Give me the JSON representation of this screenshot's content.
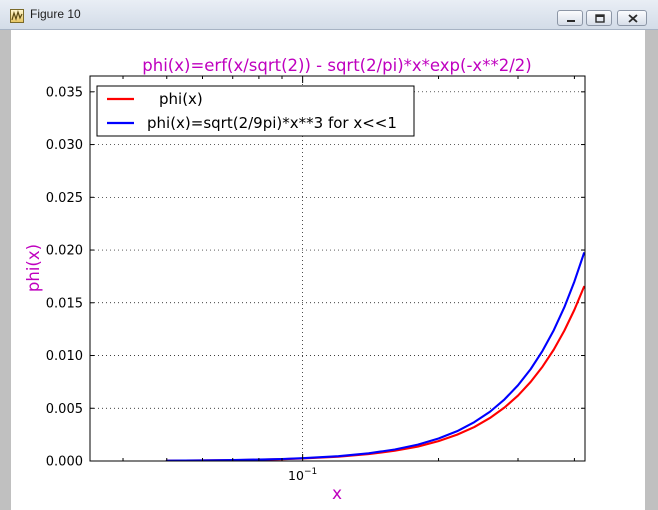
{
  "window": {
    "title": "Figure 10"
  },
  "icons": {
    "app": "figure-app-icon",
    "minimize": "minimize-icon",
    "maximize": "maximize-icon",
    "close": "close-icon"
  },
  "colors": {
    "title": "#bf00bf",
    "series_phi": "#ff0000",
    "series_approx": "#0000ff"
  },
  "chart_data": {
    "type": "line",
    "title": "phi(x)=erf(x/sqrt(2)) - sqrt(2/pi)*x*exp(-x**2/2)",
    "xlabel": "x",
    "ylabel": "phi(x)",
    "xscale": "log",
    "xlim": [
      0.0338,
      0.4222
    ],
    "ylim": [
      0,
      0.0365
    ],
    "grid": true,
    "legend_position": "upper-left",
    "x_ticks": [
      {
        "value": 0.1,
        "label": "10^-1"
      }
    ],
    "y_ticks": [
      {
        "value": 0.0,
        "label": "0.000"
      },
      {
        "value": 0.005,
        "label": "0.005"
      },
      {
        "value": 0.01,
        "label": "0.010"
      },
      {
        "value": 0.015,
        "label": "0.015"
      },
      {
        "value": 0.02,
        "label": "0.020"
      },
      {
        "value": 0.025,
        "label": "0.025"
      },
      {
        "value": 0.03,
        "label": "0.030"
      },
      {
        "value": 0.035,
        "label": "0.035"
      }
    ],
    "series": [
      {
        "name": "phi(x)",
        "color": "#ff0000",
        "x": [
          0.05,
          0.06,
          0.07,
          0.08,
          0.09,
          0.1,
          0.12,
          0.14,
          0.16,
          0.18,
          0.2,
          0.22,
          0.24,
          0.26,
          0.28,
          0.3,
          0.32,
          0.34,
          0.36,
          0.38,
          0.4,
          0.42
        ],
        "y": [
          3e-05,
          5e-05,
          8e-05,
          0.00012,
          0.00017,
          0.00024,
          0.00041,
          0.00065,
          0.00097,
          0.00137,
          0.00188,
          0.0025,
          0.00322,
          0.00408,
          0.00507,
          0.0062,
          0.0075,
          0.00895,
          0.01056,
          0.01236,
          0.01434,
          0.01651
        ]
      },
      {
        "name": "phi(x)=sqrt(2/9pi)*x**3 for x<<1",
        "color": "#0000ff",
        "x": [
          0.05,
          0.06,
          0.07,
          0.08,
          0.09,
          0.1,
          0.12,
          0.14,
          0.16,
          0.18,
          0.2,
          0.22,
          0.24,
          0.26,
          0.28,
          0.3,
          0.32,
          0.34,
          0.36,
          0.38,
          0.4,
          0.42
        ],
        "y": [
          3e-05,
          5e-05,
          9e-05,
          0.00014,
          0.00019,
          0.00027,
          0.00046,
          0.00073,
          0.00109,
          0.00155,
          0.00213,
          0.00283,
          0.00368,
          0.00467,
          0.00584,
          0.00718,
          0.00871,
          0.01045,
          0.0124,
          0.01458,
          0.01702,
          0.0197
        ]
      }
    ]
  }
}
